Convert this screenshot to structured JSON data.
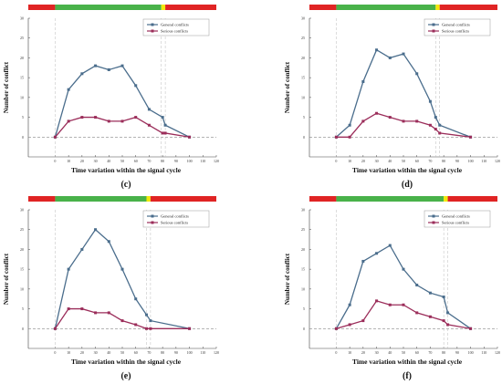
{
  "colors": {
    "general": "#4a6d8c",
    "serious": "#9b2d5a",
    "red": "#e02424",
    "green": "#49b24a",
    "yellow": "#f2e80a",
    "baseline": "#888888",
    "axis": "#444444"
  },
  "chart_data": [
    {
      "type": "line",
      "caption": "(c)",
      "xlabel": "Time variation within the signal cycle",
      "ylabel": "Number of conflict",
      "xlim": [
        -20,
        120
      ],
      "ylim": [
        -5,
        30
      ],
      "xticks": [
        0,
        10,
        20,
        30,
        40,
        50,
        60,
        70,
        80,
        90,
        100,
        110,
        120
      ],
      "yticks": [
        0,
        5,
        10,
        15,
        20,
        25,
        30
      ],
      "legend_position": "top-right",
      "signal_bar": [
        {
          "color": "red",
          "from": -20,
          "to": 0
        },
        {
          "color": "green",
          "from": 0,
          "to": 79
        },
        {
          "color": "yellow",
          "from": 79,
          "to": 82
        },
        {
          "color": "red",
          "from": 82,
          "to": 120
        }
      ],
      "vlines": [
        0,
        79,
        82
      ],
      "series": [
        {
          "name": "General conflicts",
          "color_key": "general",
          "x": [
            0,
            10,
            20,
            30,
            40,
            50,
            60,
            70,
            80,
            82,
            100
          ],
          "y": [
            0,
            12,
            16,
            18,
            17,
            18,
            13,
            7,
            5,
            3,
            0
          ]
        },
        {
          "name": "Serious  conflicts",
          "color_key": "serious",
          "x": [
            0,
            10,
            20,
            30,
            40,
            50,
            60,
            70,
            80,
            82,
            100
          ],
          "y": [
            0,
            4,
            5,
            5,
            4,
            4,
            5,
            3,
            1,
            1,
            0
          ]
        }
      ]
    },
    {
      "type": "line",
      "caption": "(d)",
      "xlabel": "Time variation within the signal cycle",
      "ylabel": "Number of conflict",
      "xlim": [
        -20,
        120
      ],
      "ylim": [
        -5,
        30
      ],
      "xticks": [
        0,
        10,
        20,
        30,
        40,
        50,
        60,
        70,
        80,
        90,
        100,
        110,
        120
      ],
      "yticks": [
        0,
        5,
        10,
        15,
        20,
        25,
        30
      ],
      "legend_position": "top-right",
      "signal_bar": [
        {
          "color": "red",
          "from": -20,
          "to": 0
        },
        {
          "color": "green",
          "from": 0,
          "to": 74
        },
        {
          "color": "yellow",
          "from": 74,
          "to": 77
        },
        {
          "color": "red",
          "from": 77,
          "to": 120
        }
      ],
      "vlines": [
        0,
        74,
        77
      ],
      "series": [
        {
          "name": "General conflicts",
          "color_key": "general",
          "x": [
            0,
            10,
            20,
            30,
            40,
            50,
            60,
            70,
            74,
            77,
            100
          ],
          "y": [
            0,
            3,
            14,
            22,
            20,
            21,
            16,
            9,
            5,
            3,
            0
          ]
        },
        {
          "name": "Serious  conflicts",
          "color_key": "serious",
          "x": [
            0,
            10,
            20,
            30,
            40,
            50,
            60,
            70,
            74,
            77,
            100
          ],
          "y": [
            0,
            0,
            4,
            6,
            5,
            4,
            4,
            3,
            2,
            1,
            0
          ]
        }
      ]
    },
    {
      "type": "line",
      "caption": "(e)",
      "xlabel": "Time variation within the signal cycle",
      "ylabel": "Number of conflict",
      "xlim": [
        -20,
        120
      ],
      "ylim": [
        -5,
        30
      ],
      "xticks": [
        0,
        10,
        20,
        30,
        40,
        50,
        60,
        70,
        80,
        90,
        100,
        110,
        120
      ],
      "yticks": [
        0,
        5,
        10,
        15,
        20,
        25,
        30
      ],
      "legend_position": "top-right",
      "signal_bar": [
        {
          "color": "red",
          "from": -20,
          "to": 0
        },
        {
          "color": "green",
          "from": 0,
          "to": 68
        },
        {
          "color": "yellow",
          "from": 68,
          "to": 71
        },
        {
          "color": "red",
          "from": 71,
          "to": 120
        }
      ],
      "vlines": [
        0,
        68,
        71
      ],
      "series": [
        {
          "name": "General conflicts",
          "color_key": "general",
          "x": [
            0,
            10,
            20,
            30,
            40,
            50,
            60,
            68,
            71,
            100
          ],
          "y": [
            0,
            15,
            20,
            25,
            22,
            15,
            7.5,
            3.5,
            2,
            0
          ]
        },
        {
          "name": "Serious  conflicts",
          "color_key": "serious",
          "x": [
            0,
            10,
            20,
            30,
            40,
            50,
            60,
            68,
            71,
            100
          ],
          "y": [
            0,
            5,
            5,
            4,
            4,
            2,
            1,
            0,
            0,
            0
          ]
        }
      ]
    },
    {
      "type": "line",
      "caption": "(f)",
      "xlabel": "Time variation within the signal cycle",
      "ylabel": "Number of conflict",
      "xlim": [
        -20,
        120
      ],
      "ylim": [
        -5,
        30
      ],
      "xticks": [
        0,
        10,
        20,
        30,
        40,
        50,
        60,
        70,
        80,
        90,
        100,
        110,
        120
      ],
      "yticks": [
        0,
        5,
        10,
        15,
        20,
        25,
        30
      ],
      "legend_position": "top-right",
      "signal_bar": [
        {
          "color": "red",
          "from": -20,
          "to": 0
        },
        {
          "color": "green",
          "from": 0,
          "to": 80
        },
        {
          "color": "yellow",
          "from": 80,
          "to": 83
        },
        {
          "color": "red",
          "from": 83,
          "to": 120
        }
      ],
      "vlines": [
        0,
        80,
        83
      ],
      "series": [
        {
          "name": "General conflicts",
          "color_key": "general",
          "x": [
            0,
            10,
            20,
            30,
            40,
            50,
            60,
            70,
            80,
            83,
            100
          ],
          "y": [
            0,
            6,
            17,
            19,
            21,
            15,
            11,
            9,
            8,
            4,
            0
          ]
        },
        {
          "name": "Serious  conflicts",
          "color_key": "serious",
          "x": [
            0,
            10,
            20,
            30,
            40,
            50,
            60,
            70,
            80,
            83,
            100
          ],
          "y": [
            0,
            1,
            2,
            7,
            6,
            6,
            4,
            3,
            2,
            1,
            0
          ]
        }
      ]
    }
  ]
}
